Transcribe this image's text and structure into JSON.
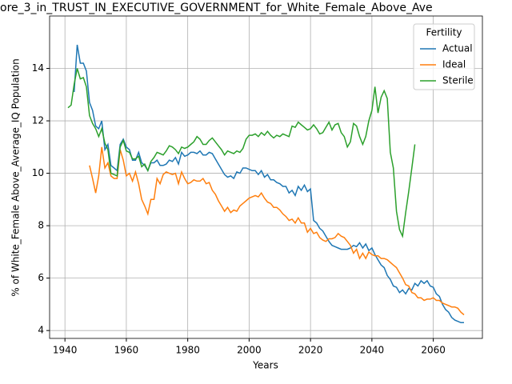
{
  "chart_data": {
    "type": "line",
    "title": "ore_3_in_TRUST_IN_EXECUTIVE_GOVERNMENT_for_White_Female_Above_Ave",
    "x_label": "Years",
    "y_label": "% of White_Female Above_Average_IQ Population",
    "legend_title": "Fertility",
    "legend": "upper right",
    "grid": true,
    "xlim": [
      1935,
      2076
    ],
    "ylim": [
      3.7,
      16.0
    ],
    "xticks": [
      1940,
      1960,
      1980,
      2000,
      2020,
      2040,
      2060
    ],
    "yticks": [
      4,
      6,
      8,
      10,
      12,
      14
    ],
    "x": [
      1941,
      1942,
      1943,
      1944,
      1945,
      1946,
      1947,
      1948,
      1949,
      1950,
      1951,
      1952,
      1953,
      1954,
      1955,
      1956,
      1957,
      1958,
      1959,
      1960,
      1961,
      1962,
      1963,
      1964,
      1965,
      1966,
      1967,
      1968,
      1969,
      1970,
      1971,
      1972,
      1973,
      1974,
      1975,
      1976,
      1977,
      1978,
      1979,
      1980,
      1981,
      1982,
      1983,
      1984,
      1985,
      1986,
      1987,
      1988,
      1989,
      1990,
      1991,
      1992,
      1993,
      1994,
      1995,
      1996,
      1997,
      1998,
      1999,
      2000,
      2001,
      2002,
      2003,
      2004,
      2005,
      2006,
      2007,
      2008,
      2009,
      2010,
      2011,
      2012,
      2013,
      2014,
      2015,
      2016,
      2017,
      2018,
      2019,
      2020,
      2021,
      2022,
      2023,
      2024,
      2025,
      2026,
      2027,
      2028,
      2029,
      2030,
      2031,
      2032,
      2033,
      2034,
      2035,
      2036,
      2037,
      2038,
      2039,
      2040,
      2041,
      2042,
      2043,
      2044,
      2045,
      2046,
      2047,
      2048,
      2049,
      2050,
      2051,
      2052,
      2053,
      2054,
      2055,
      2056,
      2057,
      2058,
      2059,
      2060,
      2061,
      2062,
      2063,
      2064,
      2065,
      2066,
      2067,
      2068,
      2069,
      2070
    ],
    "series": [
      {
        "name": "Actual",
        "color": "#1f77b4",
        "values": [
          null,
          null,
          13.1,
          14.9,
          14.2,
          14.2,
          13.9,
          12.7,
          12.4,
          11.8,
          11.7,
          12.0,
          10.9,
          11.1,
          10.3,
          10.2,
          10.1,
          11.1,
          11.3,
          11.0,
          10.9,
          10.5,
          10.5,
          10.8,
          10.4,
          10.3,
          10.1,
          10.4,
          10.4,
          10.5,
          10.3,
          10.3,
          10.35,
          10.5,
          10.45,
          10.6,
          10.35,
          10.8,
          10.65,
          10.7,
          10.8,
          10.8,
          10.75,
          10.85,
          10.7,
          10.7,
          10.8,
          10.75,
          10.55,
          10.35,
          10.15,
          9.95,
          9.85,
          9.9,
          9.8,
          10.05,
          10.0,
          10.2,
          10.2,
          10.15,
          10.1,
          10.1,
          9.95,
          10.1,
          9.85,
          9.95,
          9.75,
          9.75,
          9.65,
          9.6,
          9.5,
          9.5,
          9.25,
          9.35,
          9.15,
          9.5,
          9.35,
          9.55,
          9.3,
          9.4,
          8.2,
          8.1,
          7.9,
          7.8,
          7.6,
          7.4,
          7.25,
          7.2,
          7.15,
          7.1,
          7.1,
          7.1,
          7.15,
          7.25,
          7.2,
          7.35,
          7.15,
          7.3,
          7.05,
          7.15,
          6.9,
          6.7,
          6.5,
          6.4,
          6.1,
          5.95,
          5.7,
          5.65,
          5.45,
          5.55,
          5.4,
          5.6,
          5.55,
          5.8,
          5.7,
          5.9,
          5.8,
          5.9,
          5.7,
          5.65,
          5.4,
          5.3,
          5.0,
          4.8,
          4.7,
          4.5,
          4.4,
          4.35,
          4.3,
          4.3
        ]
      },
      {
        "name": "Ideal",
        "color": "#ff7f0e",
        "values": [
          null,
          null,
          null,
          null,
          null,
          null,
          null,
          10.3,
          9.8,
          9.25,
          9.9,
          11.0,
          10.2,
          10.4,
          9.9,
          9.8,
          9.8,
          10.9,
          10.5,
          9.9,
          10.0,
          9.7,
          10.05,
          9.6,
          9.0,
          8.75,
          8.45,
          9.0,
          9.0,
          9.8,
          9.6,
          9.95,
          10.05,
          10.0,
          9.95,
          10.0,
          9.6,
          10.05,
          9.8,
          9.6,
          9.65,
          9.75,
          9.7,
          9.7,
          9.8,
          9.6,
          9.65,
          9.35,
          9.2,
          8.95,
          8.75,
          8.55,
          8.7,
          8.5,
          8.6,
          8.55,
          8.75,
          8.85,
          8.95,
          9.05,
          9.1,
          9.15,
          9.1,
          9.25,
          9.05,
          8.9,
          8.85,
          8.7,
          8.7,
          8.6,
          8.45,
          8.35,
          8.2,
          8.25,
          8.1,
          8.3,
          8.1,
          8.1,
          7.75,
          7.9,
          7.7,
          7.75,
          7.55,
          7.45,
          7.4,
          7.5,
          7.5,
          7.55,
          7.7,
          7.6,
          7.55,
          7.4,
          7.25,
          6.95,
          7.1,
          6.75,
          6.95,
          6.75,
          7.0,
          6.9,
          6.85,
          6.85,
          6.75,
          6.75,
          6.7,
          6.6,
          6.5,
          6.4,
          6.2,
          6.0,
          5.75,
          5.7,
          5.45,
          5.4,
          5.25,
          5.25,
          5.15,
          5.2,
          5.2,
          5.25,
          5.15,
          5.15,
          5.05,
          5.0,
          4.95,
          4.9,
          4.9,
          4.85,
          4.7,
          4.6
        ]
      },
      {
        "name": "Sterile",
        "color": "#2ca02c",
        "values": [
          12.5,
          12.6,
          13.4,
          14.0,
          13.6,
          13.65,
          13.3,
          12.2,
          11.9,
          11.7,
          11.4,
          11.7,
          11.15,
          10.9,
          10.0,
          9.95,
          9.9,
          11.0,
          11.25,
          10.85,
          10.8,
          10.55,
          10.55,
          10.65,
          10.25,
          10.35,
          10.1,
          10.45,
          10.6,
          10.8,
          10.75,
          10.7,
          10.85,
          11.05,
          11.0,
          10.9,
          10.75,
          11.0,
          10.95,
          11.0,
          11.1,
          11.2,
          11.4,
          11.3,
          11.1,
          11.1,
          11.25,
          11.35,
          11.2,
          11.05,
          10.9,
          10.7,
          10.85,
          10.8,
          10.75,
          10.85,
          10.8,
          10.95,
          11.3,
          11.45,
          11.45,
          11.5,
          11.4,
          11.55,
          11.45,
          11.6,
          11.45,
          11.35,
          11.45,
          11.4,
          11.5,
          11.45,
          11.4,
          11.8,
          11.75,
          11.95,
          11.85,
          11.75,
          11.65,
          11.7,
          11.85,
          11.7,
          11.5,
          11.55,
          11.75,
          11.95,
          11.65,
          11.85,
          11.9,
          11.55,
          11.4,
          11.0,
          11.2,
          11.9,
          11.8,
          11.4,
          11.1,
          11.4,
          12.0,
          12.4,
          13.3,
          12.3,
          12.9,
          13.15,
          12.85,
          10.8,
          10.2,
          8.55,
          7.85,
          7.6,
          8.5,
          9.3,
          10.2,
          11.1,
          null,
          null,
          null,
          null,
          null,
          null,
          null,
          null,
          null,
          null,
          null,
          null,
          null,
          null,
          null,
          null
        ]
      }
    ]
  }
}
